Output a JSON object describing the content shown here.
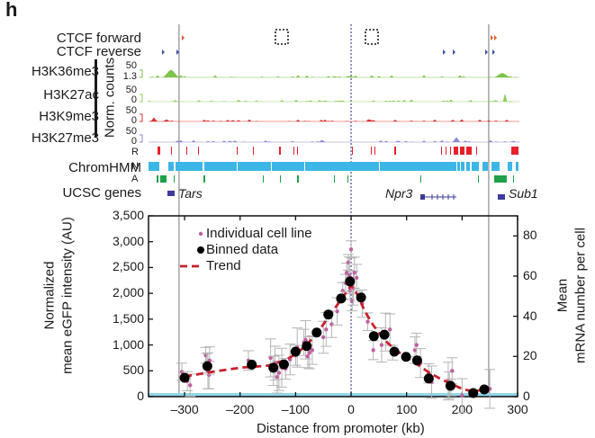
{
  "panel_letter": "h",
  "tracks": {
    "ctcf_forward": "CTCF forward",
    "ctcf_reverse": "CTCF reverse",
    "h3k36me3": {
      "label": "H3K36me3",
      "max": "50",
      "min": "1.3"
    },
    "h3k27ac": {
      "label": "H3K27ac",
      "max": "50",
      "min": "0"
    },
    "h3k9me3": {
      "label": "H3K9me3",
      "max": "50",
      "min": "0"
    },
    "h3k27me3": {
      "label": "H3K27me3",
      "max": "50",
      "min": "0"
    },
    "norm_counts_label": "Norm. counts",
    "chromhmm": {
      "label": "ChromHMM",
      "states": [
        "R",
        "N",
        "A"
      ]
    },
    "ucsc_genes": {
      "label": "UCSC genes",
      "genes": [
        "Tars",
        "Npr3",
        "Sub1"
      ]
    }
  },
  "colors": {
    "h3k36me3": "#7dc44a",
    "h3k27ac": "#8ccf5c",
    "h3k9me3": "#e03030",
    "h3k27me3": "#8a8ad0",
    "chromhmm_R": "#e8202a",
    "chromhmm_N": "#3bb6e6",
    "chromhmm_A": "#1fa04a",
    "gene": "#3b3b9a",
    "ctcf_forward": "#e0552a",
    "ctcf_reverse": "#3850a8",
    "individual": "#c060a0",
    "binned": "#000000",
    "trend": "#c8202c",
    "baseline": "#8fd8ec",
    "errorbar": "#b4b4b4"
  },
  "chart_data": {
    "type": "scatter",
    "xlabel": "Distance from promoter (kb)",
    "ylabel": "Normalized mean eGFP intensity (AU)",
    "ylabel_lines": [
      "Normalized",
      "mean eGFP intensity (AU)"
    ],
    "y2label_lines": [
      "Mean",
      "mRNA number per cell"
    ],
    "xlim": [
      -365,
      300
    ],
    "ylim": [
      0,
      3500
    ],
    "y2lim": [
      0,
      90
    ],
    "xticks": [
      -300,
      -200,
      -100,
      0,
      100,
      200,
      300
    ],
    "xtick_labels": [
      "–300",
      "–200",
      "–100",
      "0",
      "100",
      "200",
      "300"
    ],
    "yticks": [
      0,
      500,
      1000,
      1500,
      2000,
      2500,
      3000,
      3500
    ],
    "ytick_labels": [
      "0",
      "500",
      "1,000",
      "1,500",
      "2,000",
      "2,500",
      "3,000",
      "3,500"
    ],
    "y2ticks": [
      0,
      20,
      40,
      60,
      80
    ],
    "y2tick_labels": [
      "0",
      "20",
      "40",
      "60",
      "80"
    ],
    "legend": {
      "placement": "top-left",
      "entries": [
        "Individual cell line",
        "Binned data",
        "Trend"
      ]
    },
    "reference_lines": {
      "promoter_dotted": 0,
      "ctcf_left": -310,
      "ctcf_right": 248
    },
    "series": [
      {
        "name": "Binned data",
        "x": [
          -300,
          -259,
          -179,
          -140,
          -121,
          -100,
          -80,
          -62,
          -41,
          -18,
          -2,
          18,
          41,
          60,
          78,
          99,
          119,
          140,
          179,
          220,
          240
        ],
        "y": [
          365,
          590,
          620,
          560,
          625,
          870,
          980,
          1240,
          1590,
          1900,
          2230,
          1920,
          1170,
          1200,
          870,
          770,
          700,
          350,
          210,
          70,
          140
        ]
      },
      {
        "name": "Individual cell line",
        "x": [
          -305,
          -295,
          -290,
          -262,
          -260,
          -258,
          -256,
          -255,
          -185,
          -145,
          -140,
          -137,
          -133,
          -130,
          -125,
          -118,
          -110,
          -100,
          -97,
          -85,
          -82,
          -78,
          -75,
          -70,
          -50,
          -45,
          -35,
          -25,
          -15,
          -10,
          -8,
          -5,
          -3,
          -2,
          0,
          2,
          4,
          6,
          10,
          20,
          30,
          40,
          55,
          62,
          70,
          75,
          115,
          118,
          125,
          140,
          145,
          175,
          177,
          180,
          182,
          200,
          250
        ],
        "y": [
          480,
          300,
          220,
          800,
          650,
          500,
          420,
          700,
          700,
          750,
          500,
          650,
          380,
          460,
          560,
          540,
          720,
          800,
          950,
          1050,
          1100,
          780,
          850,
          900,
          1150,
          1300,
          1400,
          1650,
          2050,
          2200,
          2400,
          2600,
          2350,
          2050,
          2850,
          1850,
          2100,
          2400,
          2300,
          1800,
          1450,
          900,
          1000,
          1250,
          1300,
          850,
          900,
          1000,
          650,
          450,
          280,
          300,
          220,
          180,
          500,
          20,
          150
        ]
      },
      {
        "name": "Trend",
        "x": [
          -300,
          -250,
          -200,
          -150,
          -120,
          -100,
          -80,
          -60,
          -40,
          -20,
          0,
          10,
          25,
          40,
          60,
          80,
          100,
          120,
          140,
          160,
          180,
          200,
          220,
          240
        ],
        "y": [
          390,
          480,
          560,
          600,
          700,
          820,
          1000,
          1250,
          1550,
          1850,
          2150,
          2000,
          1650,
          1380,
          1100,
          900,
          760,
          620,
          470,
          350,
          250,
          150,
          100,
          140
        ]
      }
    ]
  }
}
